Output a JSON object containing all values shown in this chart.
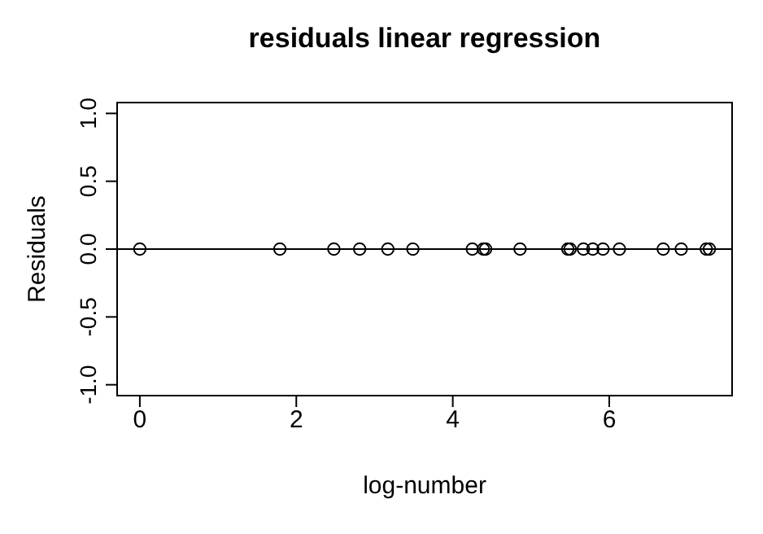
{
  "chart_data": {
    "type": "scatter",
    "title": "residuals linear regression",
    "xlabel": "log-number",
    "ylabel": "Residuals",
    "x": [
      0,
      1.79,
      2.48,
      2.81,
      3.17,
      3.49,
      4.25,
      4.39,
      4.42,
      4.86,
      5.47,
      5.5,
      5.67,
      5.79,
      5.92,
      6.13,
      6.69,
      6.92,
      7.24,
      7.28
    ],
    "values": [
      0,
      0,
      0,
      0,
      0,
      0,
      0,
      0,
      0,
      0,
      0,
      0,
      0,
      0,
      0,
      0,
      0,
      0,
      0,
      0
    ],
    "color": "#000000",
    "marker": "circle",
    "grid": false,
    "legend": false,
    "xlim": [
      -0.29,
      7.57
    ],
    "xticks": [
      0,
      2,
      4,
      6
    ],
    "ylim": [
      -1.08,
      1.08
    ],
    "yticks": [
      {
        "value": -1,
        "label": "-1.0"
      },
      {
        "value": -0.5,
        "label": "-0.5"
      },
      {
        "value": 0,
        "label": "0.0"
      },
      {
        "value": 0.5,
        "label": "0.5"
      },
      {
        "value": 1,
        "label": "1.0"
      }
    ],
    "ref_lines": [
      {
        "axis": "y",
        "value": 0,
        "color": "#000000",
        "line_style": "solid"
      }
    ]
  }
}
